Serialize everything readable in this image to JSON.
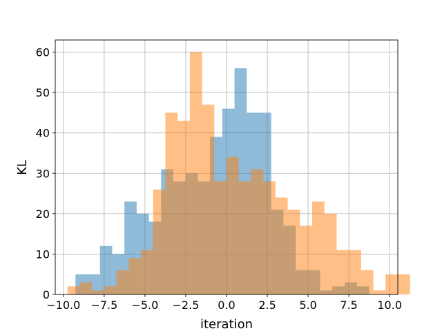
{
  "chart_data": {
    "type": "bar",
    "subtype": "histogram",
    "title": "",
    "xlabel": "iteration",
    "ylabel": "KL",
    "xlim": [
      -10.5,
      10.5
    ],
    "ylim": [
      0,
      63
    ],
    "xticks": [
      -10.0,
      -7.5,
      -5.0,
      -2.5,
      0.0,
      2.5,
      5.0,
      7.5,
      10.0
    ],
    "xtick_labels": [
      "−10.0",
      "−7.5",
      "−5.0",
      "−2.5",
      "0.0",
      "2.5",
      "5.0",
      "7.5",
      "10.0"
    ],
    "yticks": [
      0,
      10,
      20,
      30,
      40,
      50,
      60
    ],
    "ytick_labels": [
      "0",
      "10",
      "20",
      "30",
      "40",
      "50",
      "60"
    ],
    "grid": true,
    "legend": "none",
    "series": [
      {
        "color": "#1f77b4",
        "alpha": 0.5,
        "bin_start": -9.26,
        "bin_width": 0.75,
        "counts": [
          5,
          5,
          12,
          10,
          23,
          20,
          18,
          31,
          28,
          30,
          28,
          39,
          46,
          56,
          45,
          45,
          21,
          17,
          6,
          6,
          1,
          2,
          3,
          2
        ]
      },
      {
        "color": "#ff7f0e",
        "alpha": 0.5,
        "bin_start": -9.75,
        "bin_width": 0.75,
        "counts": [
          2,
          3,
          1,
          2,
          6,
          9,
          11,
          26,
          45,
          43,
          60,
          47,
          28,
          34,
          28,
          31,
          28,
          24,
          21,
          17,
          23,
          20,
          11,
          11,
          6,
          1,
          5,
          5
        ]
      }
    ]
  }
}
